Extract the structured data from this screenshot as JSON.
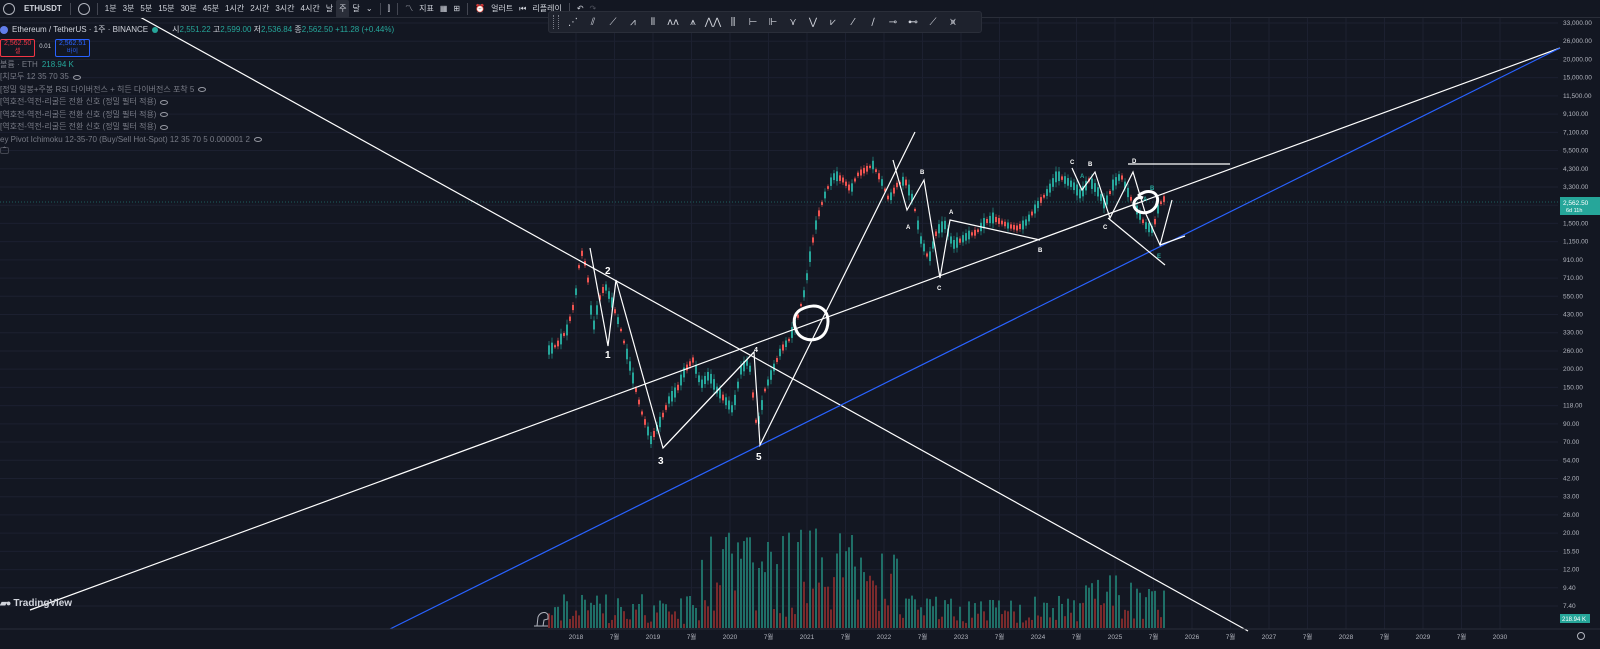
{
  "toolbar": {
    "symbol": "ETHUSDT",
    "intervals": [
      "1분",
      "3분",
      "5분",
      "15분",
      "30분",
      "45분",
      "1시간",
      "2시간",
      "3시간",
      "4시간",
      "날",
      "주",
      "달"
    ],
    "active_interval": "주",
    "indicators_label": "지표",
    "alert_label": "얼러트",
    "replay_label": "리플레이"
  },
  "legend": {
    "title": "Ethereum / TetherUS · 1주 · BINANCE",
    "open_label": "시",
    "open": "2,551.22",
    "high_label": "고",
    "high": "2,599.00",
    "low_label": "저",
    "low": "2,536.84",
    "close_label": "종",
    "close": "2,562.50",
    "change": "+11.28 (+0.44%)",
    "sell_price": "2,562.50",
    "sell_label": "셀",
    "spread": "0.01",
    "buy_price": "2,562.51",
    "buy_label": "바이",
    "volume_label": "볼륨 · ETH",
    "volume_value": "218.94 K",
    "indicators": [
      "[치모두 12 35 70 35",
      "[정밀 일봉+주봉 RSI 다이버전스 + 히든 다이버전스 포착 5",
      "[역호전-역전-리굴든 전환 신호 (정밀 필터 적용)",
      "[역호전-역전-리굴든 전환 신호 (정밀 필터 적용)",
      "[역호전-역전-리굴든 전환 신호 (정밀 필터 적용)",
      "ey Pivot Ichimoku 12-35-70 (Buy/Sell Hot-Spot) 12 35 70 5 0.000001 2"
    ]
  },
  "price_axis": {
    "labels": [
      "33,000.00",
      "26,000.00",
      "20,000.00",
      "15,000.00",
      "11,500.00",
      "9,100.00",
      "7,100.00",
      "5,500.00",
      "4,300.00",
      "3,300.00",
      "2,000.00",
      "1,500.00",
      "1,150.00",
      "910.00",
      "710.00",
      "550.00",
      "430.00",
      "330.00",
      "260.00",
      "200.00",
      "150.00",
      "118.00",
      "90.00",
      "70.00",
      "54.00",
      "42.00",
      "33.00",
      "26.00",
      "20.00",
      "15.50",
      "12.00",
      "9.40",
      "7.40"
    ],
    "current_price": "2,562.50",
    "countdown": "6d 11h",
    "volume_badge": "218.94 K"
  },
  "time_axis": {
    "labels": [
      "2018",
      "7월",
      "2019",
      "7월",
      "2020",
      "7월",
      "2021",
      "7월",
      "2022",
      "7월",
      "2023",
      "7월",
      "2024",
      "7월",
      "2025",
      "7월",
      "2026",
      "7월",
      "2027",
      "7월",
      "2028",
      "7월",
      "2029",
      "7월",
      "2030"
    ]
  },
  "annotations": {
    "wave1": "1",
    "wave2": "2",
    "wave3": "3",
    "wave4": "4",
    "wave5": "5",
    "a1": "A",
    "b1": "B",
    "a2": "A",
    "b2": "B",
    "c2": "C",
    "c3": "C",
    "b3": "B",
    "a3": "A",
    "c4": "C",
    "d": "D",
    "e": "E",
    "a4": "A",
    "b4": "B"
  },
  "watermark": "TradingView",
  "colors": {
    "background": "#131722",
    "up": "#26a69a",
    "down": "#ef5350",
    "trendline": "#ffffff",
    "support_line": "#2962ff",
    "price_badge": "#26a69a"
  }
}
